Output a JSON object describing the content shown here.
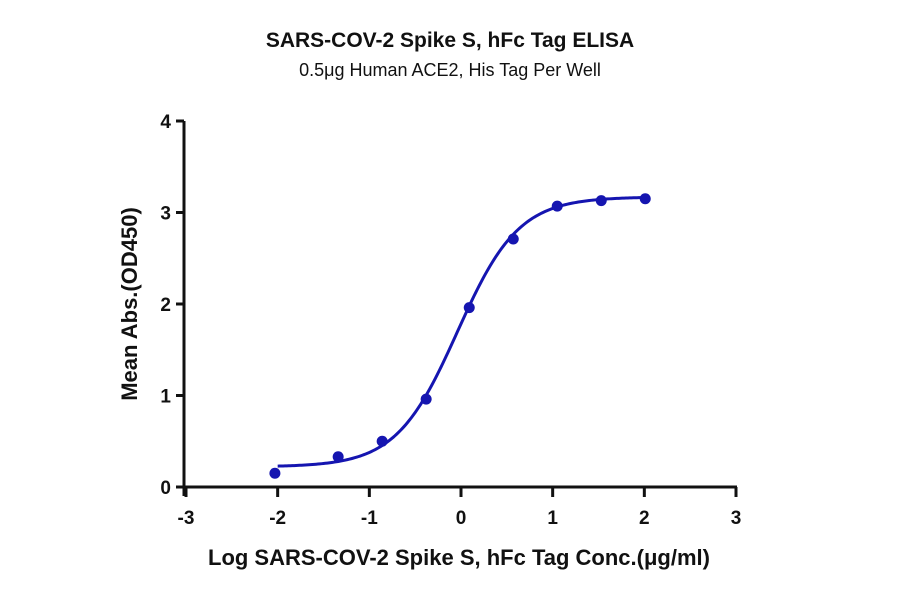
{
  "title": "SARS-COV-2 Spike S, hFc Tag ELISA",
  "subtitle": "0.5μg Human ACE2, His Tag Per Well",
  "colors": {
    "series": "#1515b0",
    "axis": "#111111"
  },
  "chart_data": {
    "type": "scatter",
    "title": "SARS-COV-2 Spike S, hFc Tag ELISA",
    "subtitle": "0.5μg Human ACE2, His Tag Per Well",
    "xlabel": "Log SARS-COV-2 Spike S, hFc Tag Conc.(μg/ml)",
    "ylabel": "Mean Abs.(OD450)",
    "xlim": [
      -3,
      3
    ],
    "ylim": [
      0,
      4
    ],
    "xticks": [
      "-3",
      "-2",
      "-1",
      "0",
      "1",
      "2",
      "3"
    ],
    "yticks": [
      "0",
      "1",
      "2",
      "3",
      "4"
    ],
    "grid": false,
    "legend": null,
    "series": [
      {
        "name": "Mean Abs.(OD450)",
        "x": [
          -2.03,
          -1.34,
          -0.86,
          -0.38,
          0.09,
          0.57,
          1.05,
          1.53,
          2.01
        ],
        "y": [
          0.15,
          0.33,
          0.5,
          0.96,
          1.96,
          2.71,
          3.07,
          3.13,
          3.15
        ]
      }
    ],
    "fit_curve": {
      "model": "4PL sigmoid",
      "bottom": 0.22,
      "top": 3.17,
      "log_ec50": -0.04,
      "hill_slope": 1.3,
      "x_range": [
        -2.0,
        2.0
      ]
    }
  }
}
